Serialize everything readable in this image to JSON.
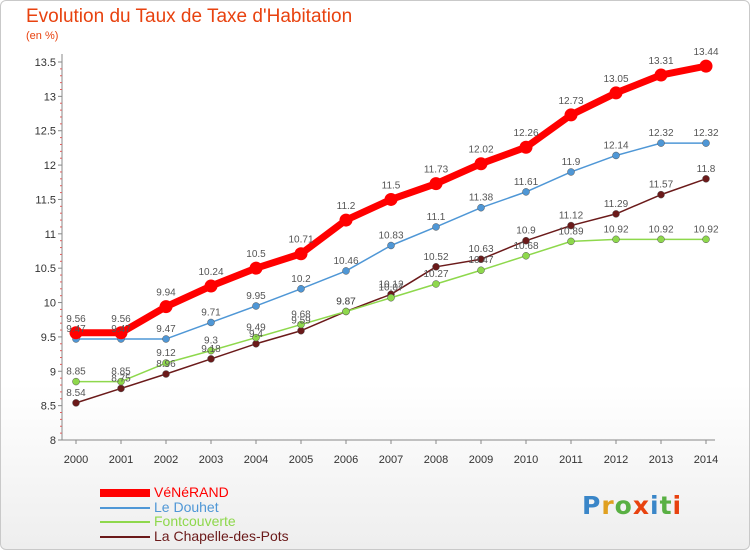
{
  "header": {
    "title": "Evolution du Taux de Taxe d'Habitation",
    "unit": "(en %)"
  },
  "logo": {
    "text": "Proxiti",
    "colors": [
      "#3a86c8",
      "#e0a020",
      "#59b043",
      "#e8420f",
      "#3a86c8",
      "#59b043",
      "#e8420f"
    ]
  },
  "chart_data": {
    "type": "line",
    "title": "Evolution du Taux de Taxe d'Habitation",
    "ylabel": "(en %)",
    "xlabel": "",
    "x": [
      "2000",
      "2001",
      "2002",
      "2003",
      "2004",
      "2005",
      "2006",
      "2007",
      "2008",
      "2009",
      "2010",
      "2011",
      "2012",
      "2013",
      "2014"
    ],
    "ylim": [
      8,
      13.5
    ],
    "yticks": [
      "8",
      "8.5",
      "9",
      "9.5",
      "10",
      "10.5",
      "11",
      "11.5",
      "12",
      "12.5",
      "13",
      "13.5"
    ],
    "grid": false,
    "legend": "bottom-left",
    "series": [
      {
        "name": "VéNéRAND",
        "color": "#ff0000",
        "values": [
          9.56,
          9.56,
          9.94,
          10.24,
          10.5,
          10.71,
          11.2,
          11.5,
          11.73,
          12.02,
          12.26,
          12.73,
          13.05,
          13.31,
          13.44
        ],
        "labels": [
          "9.56",
          "9.56",
          "9.94",
          "10.24",
          "10.5",
          "10.71",
          "11.2",
          "11.5",
          "11.73",
          "12.02",
          "12.26",
          "12.73",
          "13.05",
          "13.31",
          "13.44"
        ]
      },
      {
        "name": "Le Douhet",
        "color": "#4f97d6",
        "values": [
          9.47,
          9.47,
          9.47,
          9.71,
          9.95,
          10.2,
          10.46,
          10.83,
          11.1,
          11.38,
          11.61,
          11.9,
          12.14,
          12.32,
          12.32
        ],
        "labels": [
          "9.47",
          "9.47",
          "9.47",
          "9.71",
          "9.95",
          "10.2",
          "10.46",
          "10.83",
          "11.1",
          "11.38",
          "11.61",
          "11.9",
          "12.14",
          "12.32",
          "12.32"
        ]
      },
      {
        "name": "Fontcouverte",
        "color": "#8ed84c",
        "values": [
          8.85,
          8.85,
          9.12,
          9.3,
          9.49,
          9.68,
          9.87,
          10.07,
          10.27,
          10.47,
          10.68,
          10.89,
          10.92,
          10.92,
          10.92
        ],
        "labels": [
          "8.85",
          "8.85",
          "9.12",
          "9.3",
          "9.49",
          "9.68",
          "9.87",
          "10.07",
          "10.27",
          "10.47",
          "10.68",
          "10.89",
          "10.92",
          "10.92",
          "10.92"
        ]
      },
      {
        "name": "La Chapelle-des-Pots",
        "color": "#6b1a1a",
        "values": [
          8.54,
          8.75,
          8.96,
          9.18,
          9.4,
          9.59,
          9.87,
          10.12,
          10.52,
          10.63,
          10.9,
          11.12,
          11.29,
          11.57,
          11.8
        ],
        "labels": [
          "8.54",
          "8.75",
          "8.96",
          "9.18",
          "9.4",
          "9.59",
          "9.87",
          "10.12",
          "10.52",
          "10.63",
          "10.9",
          "11.12",
          "11.29",
          "11.57",
          "11.8"
        ]
      }
    ]
  }
}
